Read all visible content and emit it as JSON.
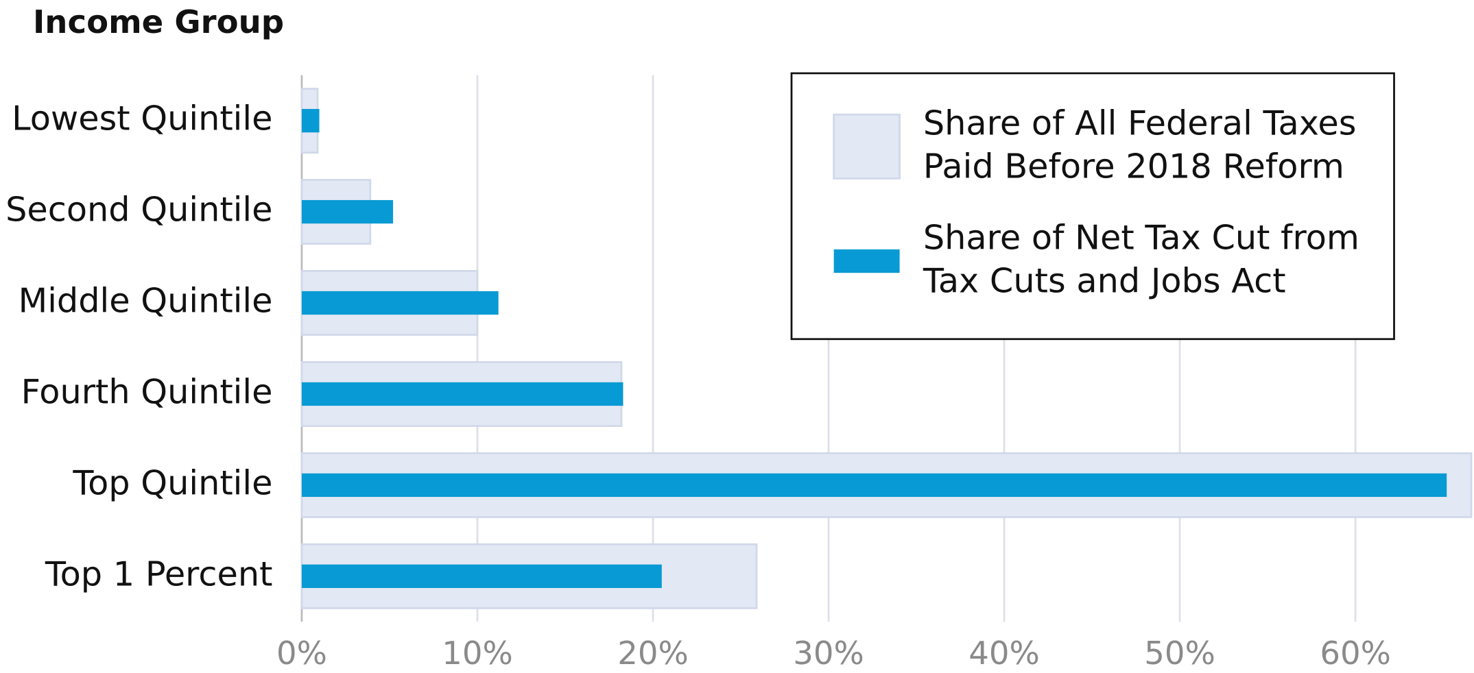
{
  "chart_data": {
    "type": "bar",
    "orientation": "horizontal",
    "title": "Income Group",
    "categories": [
      "Lowest Quintile",
      "Second Quintile",
      "Middle Quintile",
      "Fourth Quintile",
      "Top Quintile",
      "Top 1 Percent"
    ],
    "series": [
      {
        "name": "Share of All Federal Taxes Paid Before 2018 Reform",
        "color": "#e2e8f4",
        "values": [
          0.9,
          3.9,
          10.0,
          18.2,
          66.6,
          25.9
        ]
      },
      {
        "name": "Share of Net Tax Cut from Tax Cuts and Jobs Act",
        "color": "#089ad4",
        "values": [
          1.0,
          5.2,
          11.2,
          18.3,
          65.2,
          20.5
        ]
      }
    ],
    "xlim": [
      0,
      66.7
    ],
    "xticks": [
      {
        "value": 0,
        "label": "0%"
      },
      {
        "value": 10,
        "label": "10%"
      },
      {
        "value": 20,
        "label": "20%"
      },
      {
        "value": 30,
        "label": "30%"
      },
      {
        "value": 40,
        "label": "40%"
      },
      {
        "value": 50,
        "label": "50%"
      },
      {
        "value": 60,
        "label": "60%"
      }
    ],
    "grid": true,
    "legend": "upper right"
  }
}
